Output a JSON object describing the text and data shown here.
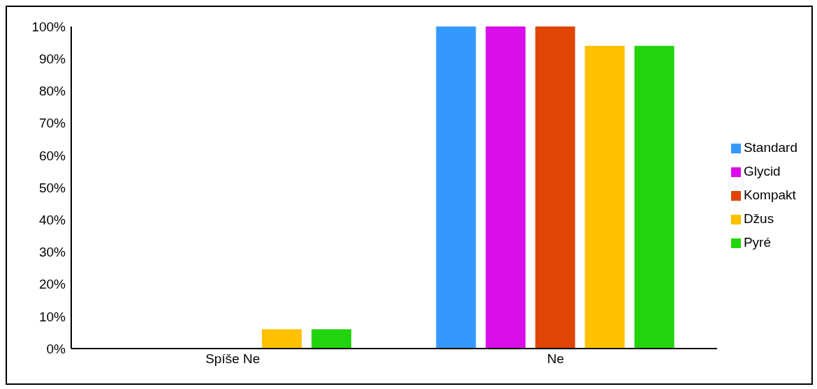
{
  "chart_data": {
    "type": "bar",
    "categories": [
      "Spíše Ne",
      "Ne"
    ],
    "series": [
      {
        "name": "Standard",
        "color": "#3399ff",
        "values": [
          0,
          100
        ]
      },
      {
        "name": "Glycid",
        "color": "#d90ee8",
        "values": [
          0,
          100
        ]
      },
      {
        "name": "Kompakt",
        "color": "#e04506",
        "values": [
          0,
          100
        ]
      },
      {
        "name": "Džus",
        "color": "#ffc000",
        "values": [
          6,
          94
        ]
      },
      {
        "name": "Pyré",
        "color": "#22d40e",
        "values": [
          6,
          94
        ]
      }
    ],
    "ylim": [
      0,
      100
    ],
    "yticks": [
      {
        "value": 0,
        "label": "0%"
      },
      {
        "value": 10,
        "label": "10%"
      },
      {
        "value": 20,
        "label": "20%"
      },
      {
        "value": 30,
        "label": "30%"
      },
      {
        "value": 40,
        "label": "40%"
      },
      {
        "value": 50,
        "label": "50%"
      },
      {
        "value": 60,
        "label": "60%"
      },
      {
        "value": 70,
        "label": "70%"
      },
      {
        "value": 80,
        "label": "80%"
      },
      {
        "value": 90,
        "label": "90%"
      },
      {
        "value": 100,
        "label": "100%"
      }
    ],
    "grid": false,
    "legend": "right"
  }
}
